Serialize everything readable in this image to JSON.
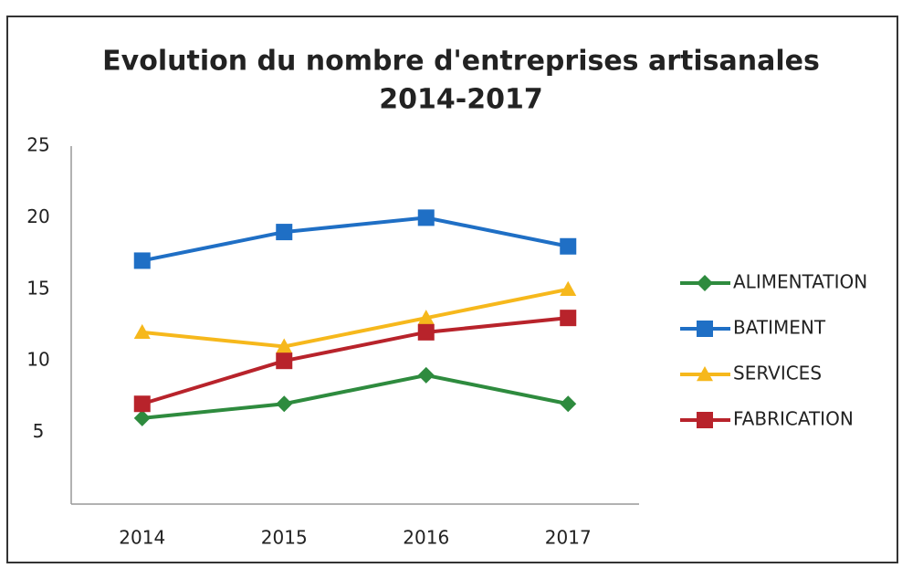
{
  "chart_data": {
    "type": "line",
    "title": [
      "Evolution du nombre d'entreprises artisanales",
      "2014-2017"
    ],
    "categories": [
      "2014",
      "2015",
      "2016",
      "2017"
    ],
    "series": [
      {
        "name": "ALIMENTATION",
        "color": "#2e8b3e",
        "marker": "diamond",
        "values": [
          6,
          7,
          9,
          7
        ]
      },
      {
        "name": "BATIMENT",
        "color": "#1f6fc5",
        "marker": "square",
        "values": [
          17,
          19,
          20,
          18
        ]
      },
      {
        "name": "SERVICES",
        "color": "#f6b81c",
        "marker": "triangle",
        "values": [
          12,
          11,
          13,
          15
        ]
      },
      {
        "name": "FABRICATION",
        "color": "#b8232b",
        "marker": "square",
        "values": [
          7,
          10,
          12,
          13
        ]
      }
    ],
    "ylim": [
      0,
      25
    ],
    "yticks": [
      5,
      10,
      15,
      20,
      25
    ],
    "grid": false,
    "legend": "right"
  }
}
